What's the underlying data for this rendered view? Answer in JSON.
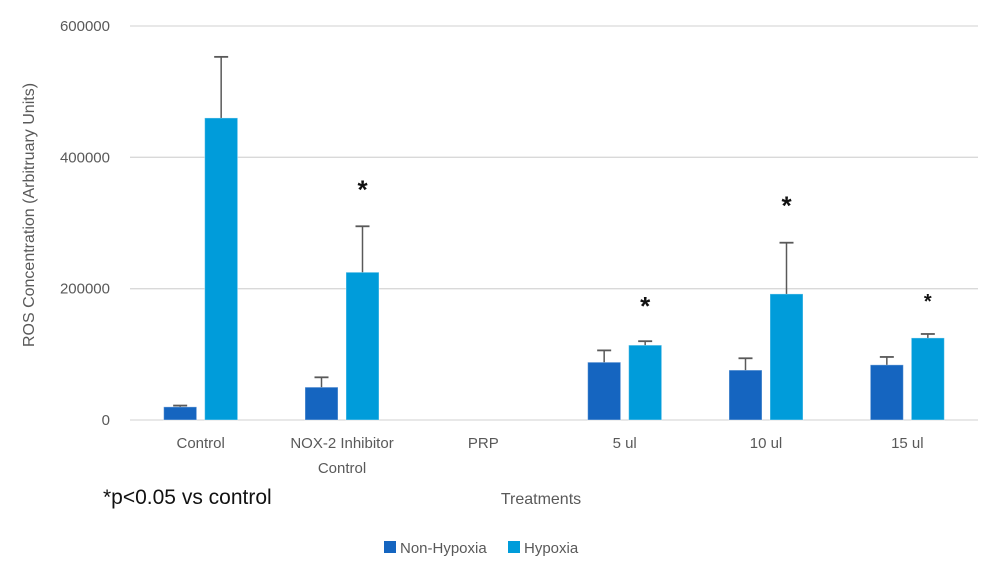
{
  "chart_data": {
    "type": "bar",
    "title": "",
    "xlabel": "Treatments",
    "ylabel": "ROS Concentration (Arbitruary Units)",
    "ylim": [
      0,
      600000
    ],
    "yticks": [
      0,
      200000,
      400000,
      600000
    ],
    "ytick_labels": [
      "0",
      "200000",
      "400000",
      "600000"
    ],
    "grid": true,
    "categories": [
      "Control",
      "NOX-2 Inhibitor Control",
      "PRP",
      "5 ul",
      "10 ul",
      "15 ul"
    ],
    "category_lines": [
      [
        "Control"
      ],
      [
        "NOX-2 Inhibitor",
        "Control"
      ],
      [
        "PRP"
      ],
      [
        "5 ul"
      ],
      [
        "10 ul"
      ],
      [
        "15 ul"
      ]
    ],
    "series": [
      {
        "name": "Non-Hypoxia",
        "color": "#1565C0",
        "values": [
          20000,
          50000,
          null,
          88000,
          76000,
          84000
        ],
        "error": [
          2000,
          15000,
          null,
          18000,
          18000,
          12000
        ]
      },
      {
        "name": "Hypoxia",
        "color": "#009CDA",
        "values": [
          460000,
          225000,
          null,
          114000,
          192000,
          125000
        ],
        "error": [
          93000,
          70000,
          null,
          6000,
          78000,
          6000
        ]
      }
    ],
    "significance": {
      "marker": "*",
      "categories": [
        "NOX-2 Inhibitor Control",
        "5 ul",
        "10 ul",
        "15 ul"
      ],
      "series": "Hypoxia"
    },
    "annotations": [
      "*p<0.05 vs control"
    ],
    "legend": {
      "position": "bottom",
      "entries": [
        "Non-Hypoxia",
        "Hypoxia"
      ]
    }
  }
}
